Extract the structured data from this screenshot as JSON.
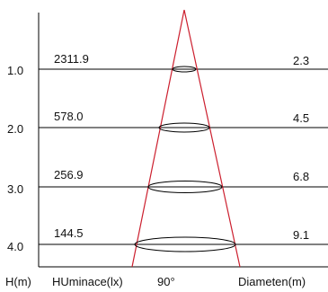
{
  "rows": [
    {
      "height": "1.0",
      "illuminance": "2311.9",
      "diameter": "2.3"
    },
    {
      "height": "2.0",
      "illuminance": "578.0",
      "diameter": "4.5"
    },
    {
      "height": "3.0",
      "illuminance": "256.9",
      "diameter": "6.8"
    },
    {
      "height": "4.0",
      "illuminance": "144.5",
      "diameter": "9.1"
    }
  ],
  "footer": {
    "height_label": "H(m)",
    "illuminance_label": "HUminace(lx)",
    "angle_label": "90°",
    "diameter_label": "Diameten(m)"
  },
  "colors": {
    "beam": "#cc1f2e",
    "lines": "#000000"
  }
}
